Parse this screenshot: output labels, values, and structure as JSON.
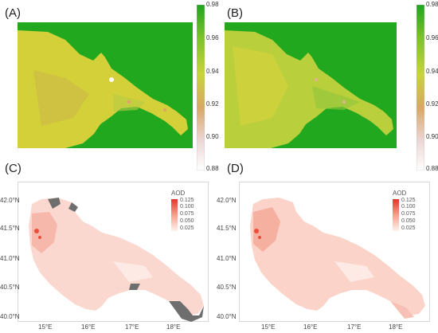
{
  "panels": {
    "a": {
      "label": "(A)"
    },
    "b": {
      "label": "(B)"
    },
    "c": {
      "label": "(C)"
    },
    "d": {
      "label": "(D)"
    }
  },
  "colorbar_top": {
    "ticks": [
      "0.98",
      "0.96",
      "0.94",
      "0.92",
      "0.90",
      "0.88"
    ],
    "colors": [
      "#1fa51f",
      "#7cc22b",
      "#c8d43a",
      "#d9a766",
      "#ecd6d6",
      "#ffffff"
    ]
  },
  "legend_bottom": {
    "title": "AOD",
    "ticks": [
      "0.125",
      "0.100",
      "0.075",
      "0.050",
      "0.025"
    ],
    "colors": [
      "#e8332a",
      "#f36a55",
      "#f8a08c",
      "#fbd0c3",
      "#fff2ee"
    ]
  },
  "axes": {
    "lat_ticks": [
      "42.0°N",
      "41.5°N",
      "41.0°N",
      "40.5°N",
      "40.0°N"
    ],
    "lon_ticks": [
      "15°E",
      "16°E",
      "17°E",
      "18°E"
    ]
  },
  "colors": {
    "sea_green": "#22a81f",
    "land_yellow": "#d6d33a",
    "land_mid": "#c7d13a",
    "aod_low": "#fbd8cf",
    "aod_high": "#ee4d3b",
    "missing_gray": "#6e6e6e"
  }
}
